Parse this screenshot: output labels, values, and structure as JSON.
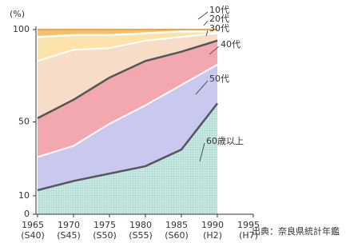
{
  "chart_data": {
    "type": "stacked-area",
    "y_unit_label": "(%)",
    "categories": [
      "1965",
      "1970",
      "1975",
      "1980",
      "1985",
      "1990",
      "1995"
    ],
    "era_labels": [
      "(S40)",
      "(S45)",
      "(S50)",
      "(S55)",
      "(S60)",
      "(H2)",
      "(H7)"
    ],
    "series": [
      {
        "name": "60歳以上",
        "color": "#c4e6e1",
        "values": [
          13,
          18,
          22,
          26,
          35,
          60,
          null
        ]
      },
      {
        "name": "50代",
        "color": "#c9c9ef",
        "values": [
          18,
          19,
          27,
          33,
          35,
          21,
          null
        ]
      },
      {
        "name": "40代",
        "color": "#f3a8b0",
        "values": [
          21,
          25,
          25,
          24,
          18,
          13,
          null
        ]
      },
      {
        "name": "30代",
        "color": "#f7dcc8",
        "values": [
          31,
          27,
          16,
          11,
          8,
          4,
          null
        ]
      },
      {
        "name": "20代",
        "color": "#fce3ab",
        "values": [
          13,
          8,
          7,
          4,
          3,
          1,
          null
        ]
      },
      {
        "name": "10代",
        "color": "#f4bf6e",
        "values": [
          4,
          3,
          3,
          2,
          1,
          1,
          null
        ]
      }
    ],
    "ylim": [
      0,
      100
    ],
    "yticks": [
      0,
      10,
      50,
      100
    ],
    "grid": false,
    "source": "出典：奈良県統計年鑑"
  }
}
